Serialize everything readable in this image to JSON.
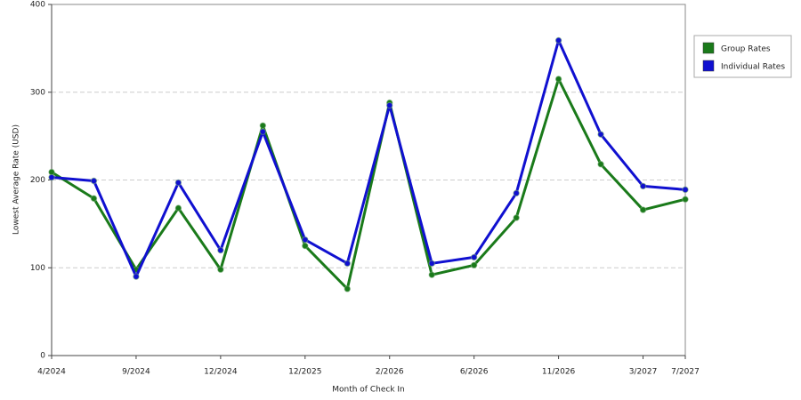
{
  "chart_data": {
    "type": "line",
    "x_label": "Month of Check In",
    "y_label": "Lowest Average Rate (USD)",
    "categories": [
      "4/2024",
      null,
      "9/2024",
      null,
      "12/2024",
      null,
      "12/2025",
      null,
      "2/2026",
      null,
      "6/2026",
      null,
      "11/2026",
      null,
      "3/2027",
      "7/2027"
    ],
    "series": [
      {
        "name": "Group Rates",
        "color": "#1a7a1a",
        "values": [
          209,
          179,
          98,
          168,
          98,
          262,
          125,
          76,
          288,
          92,
          103,
          157,
          315,
          218,
          166,
          178
        ]
      },
      {
        "name": "Individual Rates",
        "color": "#1010d0",
        "values": [
          203,
          199,
          90,
          197,
          120,
          255,
          132,
          105,
          285,
          105,
          112,
          185,
          359,
          252,
          193,
          189
        ]
      }
    ],
    "ylim": [
      0,
      400
    ],
    "yticks": [
      0,
      100,
      200,
      300,
      400
    ],
    "grid": true,
    "legend": "right"
  }
}
